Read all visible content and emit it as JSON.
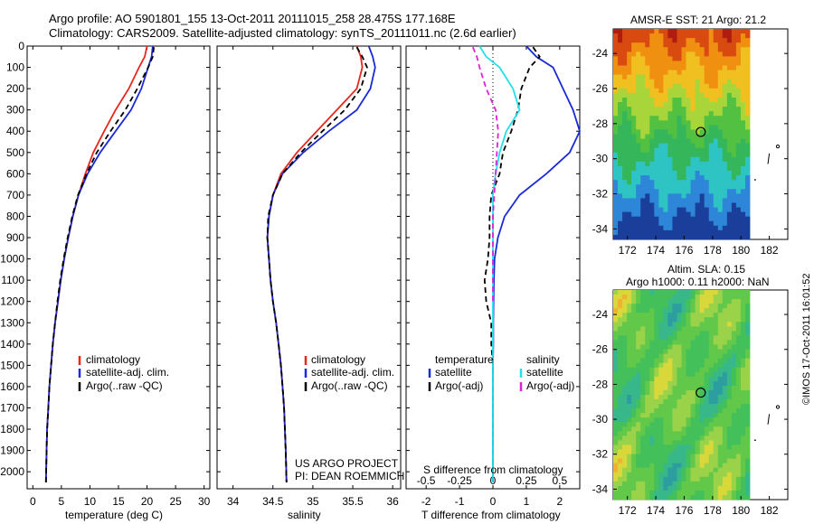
{
  "header": {
    "line1": "Argo profile: AO 5901801_155 13-Oct-2011 20111015_258 28.475S 177.168E",
    "line2": "Climatology: CARS2009. Satellite-adjusted climatology: synTS_20111011.nc (2.6d earlier)"
  },
  "stamp": "©IMOS 17-Oct-2011 16:01:52",
  "colors": {
    "climatology": "#e8261c",
    "satellite_adj": "#1a2ad8",
    "argo": "#000000",
    "salinity_sat": "#22e0e8",
    "salinity_argo": "#e020d8"
  },
  "depth_axis": {
    "ticks": [
      "0",
      "100",
      "200",
      "300",
      "400",
      "500",
      "600",
      "700",
      "800",
      "900",
      "1000",
      "1100",
      "1200",
      "1300",
      "1400",
      "1500",
      "1600",
      "1700",
      "1800",
      "1900",
      "2000"
    ]
  },
  "temp_panel": {
    "xlabel": "temperature (deg C)",
    "xticks": [
      "0",
      "5",
      "10",
      "15",
      "20",
      "25",
      "30"
    ],
    "legend": [
      "climatology",
      "satellite-adj. clim.",
      "Argo(..raw -QC)"
    ]
  },
  "sal_panel": {
    "xlabel": "salinity",
    "xticks": [
      "34",
      "34.5",
      "35",
      "35.5",
      "36"
    ],
    "legend": [
      "climatology",
      "satellite-adj. clim.",
      "Argo(..raw -QC)"
    ],
    "note1": "US ARGO PROJECT",
    "note2": "PI: DEAN ROEMMICH"
  },
  "diff_panel": {
    "xlabel": "T difference from climatology",
    "top_label": "S difference from climatology",
    "xticks_T": [
      "-2",
      "-1",
      "0",
      "1",
      "2"
    ],
    "xticks_S": [
      "-0.5",
      "-0.25",
      "0",
      "0.25",
      "0.5"
    ],
    "legend_temp_title": "temperature",
    "legend_sal_title": "salinity",
    "legend_temp": [
      "satellite",
      "Argo(-adj)"
    ],
    "legend_sal": [
      "satellite",
      "Argo(-adj)"
    ]
  },
  "sst_map": {
    "title": "AMSR-E SST: 21  Argo: 21.2",
    "yticks": [
      "-24",
      "-26",
      "-28",
      "-30",
      "-32",
      "-34"
    ],
    "xticks": [
      "172",
      "174",
      "176",
      "178",
      "180",
      "182"
    ]
  },
  "sla_map": {
    "title1": "Altim. SLA: 0.15",
    "title2": "Argo h1000: 0.11 h2000: NaN",
    "yticks": [
      "-24",
      "-26",
      "-28",
      "-30",
      "-32",
      "-34"
    ],
    "xticks": [
      "172",
      "174",
      "176",
      "178",
      "180",
      "182"
    ]
  },
  "chart_data": [
    {
      "type": "line",
      "name": "temperature profile",
      "xlabel": "temperature (deg C)",
      "ylabel": "",
      "xlim": [
        -1,
        31
      ],
      "ylim": [
        2080,
        0
      ],
      "series": [
        {
          "name": "climatology",
          "x": [
            20.0,
            19.6,
            18.6,
            16.8,
            14.5,
            12.5,
            10.6,
            9.2,
            8.0,
            7.0,
            6.2,
            5.5,
            4.9,
            4.4,
            3.9,
            3.5,
            3.2,
            2.9,
            2.7,
            2.5,
            2.4,
            2.3
          ],
          "y": [
            0,
            50,
            100,
            200,
            300,
            400,
            500,
            600,
            700,
            800,
            900,
            1000,
            1100,
            1200,
            1300,
            1400,
            1500,
            1600,
            1700,
            1800,
            1900,
            2050
          ]
        },
        {
          "name": "satellite-adj. clim.",
          "x": [
            21.0,
            20.8,
            20.2,
            19.0,
            17.2,
            14.5,
            11.8,
            9.6,
            8.0,
            7.0,
            6.2,
            5.5,
            4.9,
            4.4,
            3.9,
            3.5,
            3.2,
            2.9,
            2.7,
            2.5,
            2.4,
            2.3
          ],
          "y": [
            0,
            50,
            100,
            200,
            300,
            400,
            500,
            600,
            700,
            800,
            900,
            1000,
            1100,
            1200,
            1300,
            1400,
            1500,
            1600,
            1700,
            1800,
            1900,
            2050
          ]
        },
        {
          "name": "Argo(..raw -QC)",
          "x": [
            21.2,
            21.0,
            20.2,
            18.3,
            16.2,
            13.6,
            11.2,
            9.4,
            7.9,
            6.9,
            6.1,
            5.4,
            4.8,
            4.3,
            3.9,
            3.5,
            3.2,
            2.9,
            2.7,
            2.5,
            2.4,
            2.3
          ],
          "y": [
            5,
            50,
            100,
            200,
            300,
            400,
            500,
            600,
            700,
            800,
            900,
            1000,
            1100,
            1200,
            1300,
            1400,
            1500,
            1600,
            1700,
            1800,
            1900,
            2050
          ]
        }
      ]
    },
    {
      "type": "line",
      "name": "salinity profile",
      "xlabel": "salinity",
      "ylabel": "",
      "xlim": [
        33.8,
        36.1
      ],
      "ylim": [
        2080,
        0
      ],
      "series": [
        {
          "name": "climatology",
          "x": [
            35.55,
            35.6,
            35.62,
            35.55,
            35.3,
            35.05,
            34.8,
            34.6,
            34.5,
            34.45,
            34.43,
            34.45,
            34.47,
            34.5,
            34.54,
            34.57,
            34.6,
            34.62,
            34.64,
            34.65,
            34.66,
            34.67
          ],
          "y": [
            0,
            50,
            100,
            200,
            300,
            400,
            500,
            600,
            700,
            800,
            900,
            1000,
            1100,
            1200,
            1300,
            1400,
            1500,
            1600,
            1700,
            1800,
            1900,
            2050
          ]
        },
        {
          "name": "satellite-adj. clim.",
          "x": [
            35.7,
            35.75,
            35.78,
            35.72,
            35.55,
            35.2,
            34.88,
            34.62,
            34.5,
            34.45,
            34.43,
            34.45,
            34.47,
            34.5,
            34.54,
            34.57,
            34.6,
            34.62,
            34.64,
            34.65,
            34.66,
            34.67
          ],
          "y": [
            0,
            50,
            100,
            200,
            300,
            400,
            500,
            600,
            700,
            800,
            900,
            1000,
            1100,
            1200,
            1300,
            1400,
            1500,
            1600,
            1700,
            1800,
            1900,
            2050
          ]
        },
        {
          "name": "Argo(..raw -QC)",
          "x": [
            35.55,
            35.62,
            35.68,
            35.6,
            35.4,
            35.12,
            34.85,
            34.62,
            34.5,
            34.44,
            34.43,
            34.45,
            34.47,
            34.5,
            34.54,
            34.57,
            34.6,
            34.62,
            34.64,
            34.65,
            34.66,
            34.67
          ],
          "y": [
            5,
            50,
            100,
            200,
            300,
            400,
            500,
            600,
            700,
            800,
            900,
            1000,
            1100,
            1200,
            1300,
            1400,
            1500,
            1600,
            1700,
            1800,
            1900,
            2050
          ]
        }
      ]
    },
    {
      "type": "line",
      "name": "difference from climatology",
      "xlabel": "T difference from climatology",
      "ylabel": "",
      "xlim": [
        -2.6,
        2.6
      ],
      "ylim": [
        2080,
        0
      ],
      "series": [
        {
          "name": "temperature satellite",
          "x": [
            1.0,
            1.3,
            1.8,
            2.1,
            2.4,
            2.6,
            2.3,
            1.6,
            0.8,
            0.35,
            0.15,
            0.05,
            0.03,
            0.02,
            0.01,
            0.01,
            0.0,
            0.0,
            0.0,
            0.0,
            0.0
          ],
          "y": [
            0,
            50,
            100,
            200,
            300,
            400,
            500,
            600,
            700,
            800,
            900,
            1000,
            1100,
            1200,
            1300,
            1400,
            1500,
            1600,
            1700,
            1800,
            2050
          ]
        },
        {
          "name": "temperature Argo(-adj)",
          "x": [
            1.2,
            1.4,
            1.1,
            0.85,
            0.75,
            0.55,
            0.3,
            0.2,
            -0.05,
            -0.1,
            -0.1,
            -0.15,
            -0.25,
            -0.2,
            -0.05,
            -0.05,
            0.0,
            0.0,
            0.0,
            0.0
          ],
          "y": [
            5,
            50,
            100,
            200,
            300,
            400,
            500,
            600,
            700,
            800,
            900,
            1000,
            1100,
            1200,
            1300,
            1400,
            1500,
            1600,
            1700,
            2050
          ]
        },
        {
          "name": "salinity satellite",
          "x": [
            -0.1,
            -0.05,
            0.05,
            0.15,
            0.2,
            0.1,
            0.05,
            0.02,
            0.0,
            0.0,
            0.0,
            0.0,
            0.0,
            0.0,
            0.0,
            0.0,
            0.0,
            0.0,
            0.0,
            0.0
          ],
          "y": [
            0,
            50,
            100,
            200,
            300,
            400,
            500,
            600,
            700,
            800,
            900,
            1000,
            1100,
            1200,
            1300,
            1400,
            1500,
            1600,
            1700,
            2050
          ]
        },
        {
          "name": "salinity Argo(-adj)",
          "x": [
            -0.15,
            -0.12,
            -0.1,
            -0.05,
            0.02,
            0.04,
            0.03,
            0.02,
            0.01,
            0.0,
            0.0,
            0.0,
            0.0,
            0.0
          ],
          "y": [
            5,
            50,
            100,
            200,
            300,
            400,
            500,
            600,
            700,
            800,
            900,
            1000,
            1100,
            1200
          ]
        }
      ]
    }
  ]
}
